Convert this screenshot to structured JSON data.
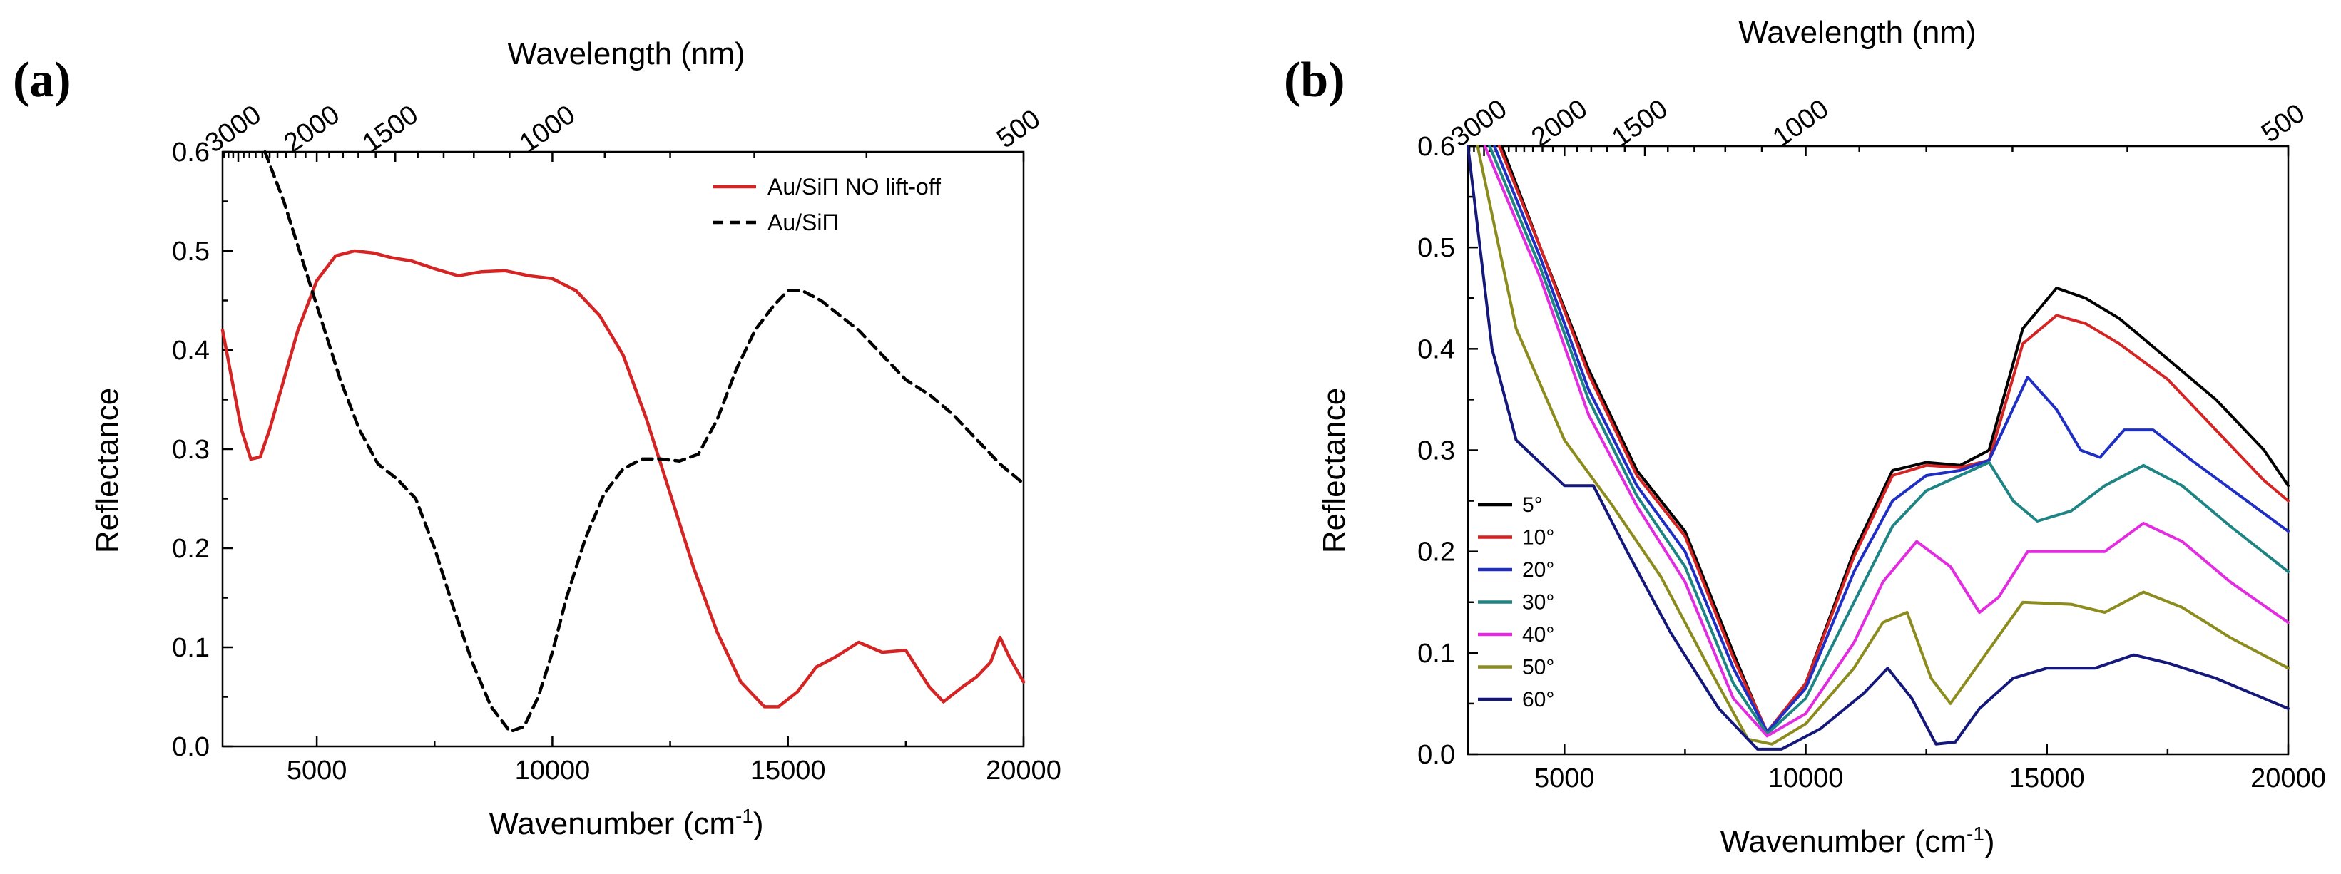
{
  "colors": {
    "background": "#ffffff",
    "axis": "#000000",
    "a_red": "#d42424",
    "a_dashed": "#000000"
  },
  "chart_data": [
    {
      "type": "line",
      "panel_label": "(a)",
      "xlabel": "Wavenumber (cm",
      "xlabel_sup": "-1",
      "xlabel_end": ")",
      "ylabel": "Reflectance",
      "top_axis_label": "Wavelength (nm)",
      "xlim": [
        3000,
        20000
      ],
      "ylim": [
        0,
        0.6
      ],
      "xticks": [
        5000,
        10000,
        15000,
        20000
      ],
      "xtick_labels": [
        "5000",
        "10000",
        "15000",
        "20000"
      ],
      "yticks": [
        0,
        0.1,
        0.2,
        0.3,
        0.4,
        0.5,
        0.6
      ],
      "ytick_labels": [
        "0.0",
        "0.1",
        "0.2",
        "0.3",
        "0.4",
        "0.5",
        "0.6"
      ],
      "top_ticks_nm": [
        3000,
        2000,
        1500,
        1000,
        500
      ],
      "top_tick_labels": [
        "3000",
        "2000",
        "1500",
        "1000",
        "500"
      ],
      "legend_position": "top-right",
      "series": [
        {
          "name": "Au/SiΠ NO lift-off",
          "color": "#d42424",
          "dash": "solid",
          "x": [
            3000,
            3200,
            3400,
            3600,
            3800,
            4000,
            4300,
            4600,
            5000,
            5400,
            5800,
            6200,
            6600,
            7000,
            7500,
            8000,
            8500,
            9000,
            9500,
            10000,
            10500,
            11000,
            11500,
            12000,
            12500,
            13000,
            13500,
            14000,
            14500,
            14800,
            15200,
            15600,
            16000,
            16500,
            17000,
            17500,
            18000,
            18300,
            18700,
            19000,
            19300,
            19500,
            19700,
            20000
          ],
          "y": [
            0.42,
            0.37,
            0.32,
            0.29,
            0.292,
            0.32,
            0.37,
            0.42,
            0.47,
            0.495,
            0.5,
            0.498,
            0.493,
            0.49,
            0.482,
            0.475,
            0.479,
            0.48,
            0.475,
            0.472,
            0.46,
            0.435,
            0.395,
            0.33,
            0.255,
            0.18,
            0.115,
            0.065,
            0.04,
            0.04,
            0.055,
            0.08,
            0.09,
            0.105,
            0.095,
            0.097,
            0.06,
            0.045,
            0.06,
            0.07,
            0.085,
            0.11,
            0.09,
            0.065
          ]
        },
        {
          "name": "Au/SiΠ",
          "color": "#000000",
          "dash": "dashed",
          "x": [
            3900,
            4300,
            4700,
            5100,
            5500,
            5900,
            6300,
            6700,
            7100,
            7500,
            7900,
            8300,
            8700,
            9100,
            9400,
            9700,
            10000,
            10300,
            10700,
            11100,
            11500,
            11900,
            12300,
            12700,
            13100,
            13500,
            13900,
            14300,
            14700,
            15000,
            15300,
            15700,
            16100,
            16500,
            17000,
            17500,
            18000,
            18500,
            19000,
            19500,
            20000
          ],
          "y": [
            0.6,
            0.55,
            0.49,
            0.43,
            0.37,
            0.32,
            0.285,
            0.27,
            0.25,
            0.2,
            0.14,
            0.085,
            0.04,
            0.015,
            0.02,
            0.05,
            0.095,
            0.15,
            0.21,
            0.255,
            0.28,
            0.29,
            0.29,
            0.288,
            0.295,
            0.33,
            0.38,
            0.42,
            0.445,
            0.46,
            0.46,
            0.45,
            0.435,
            0.42,
            0.395,
            0.37,
            0.355,
            0.335,
            0.31,
            0.285,
            0.265
          ]
        }
      ]
    },
    {
      "type": "line",
      "panel_label": "(b)",
      "xlabel": "Wavenumber (cm",
      "xlabel_sup": "-1",
      "xlabel_end": ")",
      "ylabel": "Reflectance",
      "top_axis_label": "Wavelength (nm)",
      "xlim": [
        3000,
        20000
      ],
      "ylim": [
        0,
        0.6
      ],
      "xticks": [
        5000,
        10000,
        15000,
        20000
      ],
      "xtick_labels": [
        "5000",
        "10000",
        "15000",
        "20000"
      ],
      "yticks": [
        0,
        0.1,
        0.2,
        0.3,
        0.4,
        0.5,
        0.6
      ],
      "ytick_labels": [
        "0.0",
        "0.1",
        "0.2",
        "0.3",
        "0.4",
        "0.5",
        "0.6"
      ],
      "top_ticks_nm": [
        3000,
        2000,
        1500,
        1000,
        500
      ],
      "top_tick_labels": [
        "3000",
        "2000",
        "1500",
        "1000",
        "500"
      ],
      "legend_position": "bottom-left",
      "series": [
        {
          "name": "5°",
          "color": "#000000",
          "x": [
            3700,
            4500,
            5500,
            6500,
            7500,
            8500,
            9200,
            10000,
            11000,
            11800,
            12500,
            13200,
            13800,
            14500,
            15200,
            15800,
            16500,
            17500,
            18500,
            19500,
            20000
          ],
          "y": [
            0.6,
            0.5,
            0.38,
            0.28,
            0.22,
            0.1,
            0.02,
            0.07,
            0.2,
            0.28,
            0.288,
            0.285,
            0.3,
            0.42,
            0.46,
            0.45,
            0.43,
            0.39,
            0.35,
            0.3,
            0.265
          ]
        },
        {
          "name": "10°",
          "color": "#d42424",
          "x": [
            3650,
            4500,
            5500,
            6500,
            7500,
            8500,
            9200,
            10000,
            11000,
            11800,
            12500,
            13200,
            13800,
            14500,
            15200,
            15800,
            16500,
            17500,
            18500,
            19500,
            20000
          ],
          "y": [
            0.6,
            0.5,
            0.375,
            0.275,
            0.215,
            0.095,
            0.022,
            0.07,
            0.195,
            0.275,
            0.285,
            0.283,
            0.29,
            0.405,
            0.433,
            0.425,
            0.405,
            0.37,
            0.32,
            0.27,
            0.25
          ]
        },
        {
          "name": "20°",
          "color": "#1f2fc4",
          "x": [
            3550,
            4500,
            5500,
            6500,
            7500,
            8500,
            9200,
            10000,
            11000,
            11800,
            12500,
            13200,
            13800,
            14600,
            15200,
            15700,
            16100,
            16600,
            17200,
            18000,
            19000,
            20000
          ],
          "y": [
            0.6,
            0.49,
            0.36,
            0.265,
            0.2,
            0.085,
            0.022,
            0.065,
            0.18,
            0.25,
            0.275,
            0.28,
            0.29,
            0.372,
            0.34,
            0.3,
            0.293,
            0.32,
            0.32,
            0.29,
            0.255,
            0.22
          ]
        },
        {
          "name": "30°",
          "color": "#1e8484",
          "x": [
            3450,
            4500,
            5500,
            6500,
            7500,
            8500,
            9200,
            10000,
            11000,
            11800,
            12500,
            13200,
            13800,
            14300,
            14800,
            15500,
            16200,
            17000,
            17800,
            18800,
            20000
          ],
          "y": [
            0.6,
            0.48,
            0.35,
            0.255,
            0.185,
            0.07,
            0.02,
            0.055,
            0.15,
            0.225,
            0.26,
            0.275,
            0.288,
            0.25,
            0.23,
            0.24,
            0.265,
            0.285,
            0.265,
            0.225,
            0.18
          ]
        },
        {
          "name": "40°",
          "color": "#e22ce0",
          "x": [
            3350,
            4500,
            5500,
            6500,
            7500,
            8500,
            9200,
            10000,
            11000,
            11600,
            12300,
            13000,
            13600,
            14000,
            14600,
            15400,
            16200,
            17000,
            17800,
            18800,
            20000
          ],
          "y": [
            0.6,
            0.47,
            0.335,
            0.245,
            0.17,
            0.055,
            0.018,
            0.04,
            0.11,
            0.17,
            0.21,
            0.185,
            0.14,
            0.155,
            0.2,
            0.2,
            0.2,
            0.228,
            0.21,
            0.17,
            0.13
          ]
        },
        {
          "name": "50°",
          "color": "#8c8c1e",
          "x": [
            3200,
            4000,
            5000,
            6000,
            7000,
            8000,
            8800,
            9300,
            10000,
            11000,
            11600,
            12100,
            12600,
            13000,
            13600,
            14500,
            15500,
            16200,
            17000,
            17800,
            18800,
            20000
          ],
          "y": [
            0.6,
            0.42,
            0.31,
            0.245,
            0.175,
            0.085,
            0.015,
            0.01,
            0.03,
            0.085,
            0.13,
            0.14,
            0.075,
            0.05,
            0.09,
            0.15,
            0.148,
            0.14,
            0.16,
            0.145,
            0.115,
            0.085
          ]
        },
        {
          "name": "60°",
          "color": "#14187a",
          "x": [
            3000,
            3500,
            4000,
            5000,
            5600,
            6300,
            7200,
            8200,
            9000,
            9500,
            10300,
            11200,
            11700,
            12200,
            12700,
            13100,
            13600,
            14300,
            15000,
            16000,
            16800,
            17500,
            18500,
            19500,
            20000
          ],
          "y": [
            0.6,
            0.4,
            0.31,
            0.265,
            0.265,
            0.2,
            0.12,
            0.045,
            0.005,
            0.005,
            0.025,
            0.06,
            0.085,
            0.055,
            0.01,
            0.012,
            0.045,
            0.075,
            0.085,
            0.085,
            0.098,
            0.09,
            0.075,
            0.055,
            0.045
          ]
        }
      ]
    }
  ]
}
